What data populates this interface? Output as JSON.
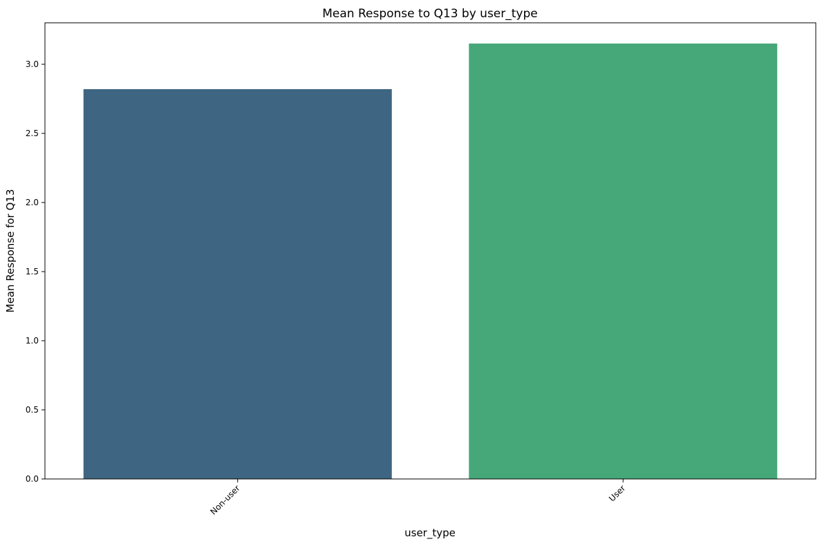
{
  "chart_data": {
    "type": "bar",
    "title": "Mean Response to Q13 by user_type",
    "xlabel": "user_type",
    "ylabel": "Mean Response for Q13",
    "categories": [
      "Non-user",
      "User"
    ],
    "values": [
      2.82,
      3.15
    ],
    "colors": [
      "#3e6682",
      "#46a879"
    ],
    "ylim": [
      0,
      3.3
    ],
    "yticks": [
      "0.0",
      "0.5",
      "1.0",
      "1.5",
      "2.0",
      "2.5",
      "3.0"
    ],
    "grid": false,
    "legend": "none"
  }
}
